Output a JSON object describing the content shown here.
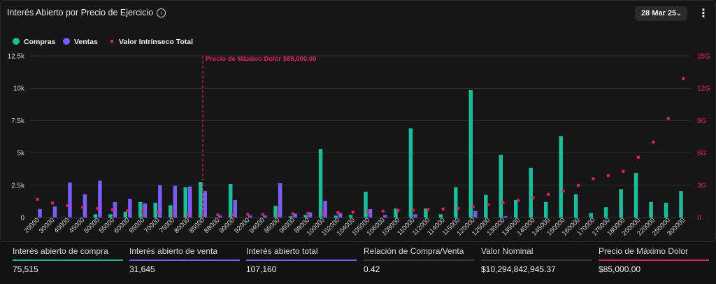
{
  "header": {
    "title": "Interés Abierto por Precio de Ejercicio",
    "info_icon": "info-circle-icon",
    "date_label": "28 Mar 25",
    "chevron_icon": "chevron-down-icon",
    "menu_icon": "kebab-menu-icon"
  },
  "legend": [
    {
      "label": "Compras",
      "color": "#1abc9c",
      "shape": "circle"
    },
    {
      "label": "Ventas",
      "color": "#7b5cff",
      "shape": "circle"
    },
    {
      "label": "Valor Intrínseco Total",
      "color": "#e0245e",
      "shape": "square"
    }
  ],
  "chart_data": {
    "type": "bar",
    "title": "Interés Abierto por Precio de Ejercicio",
    "categories": [
      "20000",
      "30000",
      "40000",
      "45000",
      "50000",
      "55000",
      "60000",
      "65000",
      "70000",
      "75000",
      "80000",
      "85000",
      "88000",
      "90000",
      "92000",
      "94000",
      "95000",
      "96000",
      "98000",
      "100000",
      "102000",
      "104000",
      "105000",
      "106000",
      "108000",
      "110000",
      "112000",
      "114000",
      "115000",
      "120000",
      "125000",
      "130000",
      "135000",
      "140000",
      "145000",
      "150000",
      "160000",
      "170000",
      "175000",
      "180000",
      "200000",
      "220000",
      "250000",
      "300000"
    ],
    "series": [
      {
        "name": "Compras",
        "axis": "left",
        "color": "#1abc9c",
        "values": [
          0,
          0,
          0,
          0,
          250,
          250,
          450,
          1200,
          1150,
          950,
          2350,
          2750,
          0,
          2600,
          0,
          0,
          900,
          100,
          200,
          5300,
          150,
          200,
          2000,
          0,
          700,
          6900,
          700,
          250,
          2350,
          9850,
          1750,
          4850,
          1350,
          3850,
          1200,
          6300,
          1800,
          350,
          800,
          2200,
          3450,
          1200,
          1150,
          2050
        ]
      },
      {
        "name": "Ventas",
        "axis": "left",
        "color": "#7b5cff",
        "values": [
          650,
          850,
          2700,
          1800,
          2850,
          1200,
          1450,
          1100,
          2500,
          2450,
          2400,
          2050,
          150,
          1350,
          150,
          150,
          2650,
          300,
          400,
          1300,
          350,
          0,
          650,
          200,
          0,
          250,
          0,
          0,
          0,
          500,
          0,
          100,
          0,
          0,
          0,
          0,
          0,
          0,
          0,
          0,
          0,
          0,
          0,
          0
        ]
      },
      {
        "name": "Valor Intrínseco Total",
        "axis": "right",
        "type": "scatter",
        "color": "#e0245e",
        "values": [
          1.7,
          1.35,
          1.1,
          0.95,
          0.85,
          0.75,
          0.65,
          0.55,
          0.45,
          0.4,
          0.3,
          0.25,
          0.25,
          0.25,
          0.3,
          0.3,
          0.35,
          0.35,
          0.4,
          0.45,
          0.45,
          0.5,
          0.55,
          0.6,
          0.65,
          0.7,
          0.75,
          0.8,
          0.85,
          1.0,
          1.2,
          1.4,
          1.6,
          1.85,
          2.15,
          2.45,
          3.0,
          3.6,
          3.9,
          4.3,
          5.6,
          7.0,
          9.2,
          12.9
        ]
      }
    ],
    "y_left": {
      "ylim": [
        0,
        12500
      ],
      "ticks": [
        "0",
        "2.5k",
        "5k",
        "7.5k",
        "10k",
        "12.5k"
      ],
      "tick_values": [
        0,
        2500,
        5000,
        7500,
        10000,
        12500
      ]
    },
    "y_right": {
      "ylim": [
        0,
        15
      ],
      "ticks": [
        "0",
        "3G",
        "6G",
        "9G",
        "12G",
        "15G"
      ],
      "tick_values": [
        0,
        3,
        6,
        9,
        12,
        15
      ]
    },
    "reference_line": {
      "category": "85000",
      "label": "Precio de Máximo Dolor $85,000.00",
      "color": "#e0245e"
    },
    "grid": true,
    "legend_position": "top-left"
  },
  "stats": [
    {
      "label": "Interés abierto de compra",
      "value": "75,515",
      "color": "#1abc9c"
    },
    {
      "label": "Interés abierto de venta",
      "value": "31,645",
      "color": "#7b5cff"
    },
    {
      "label": "Interés abierto total",
      "value": "107,160",
      "color": "#7b5cff"
    },
    {
      "label": "Relación de Compra/Venta",
      "value": "0.42",
      "color": "#3a3a3a"
    },
    {
      "label": "Valor Nominal",
      "value": "$10,294,842,945.37",
      "color": "#3a3a3a"
    },
    {
      "label": "Precio de Máximo Dolor",
      "value": "$85,000.00",
      "color": "#e0245e"
    }
  ]
}
